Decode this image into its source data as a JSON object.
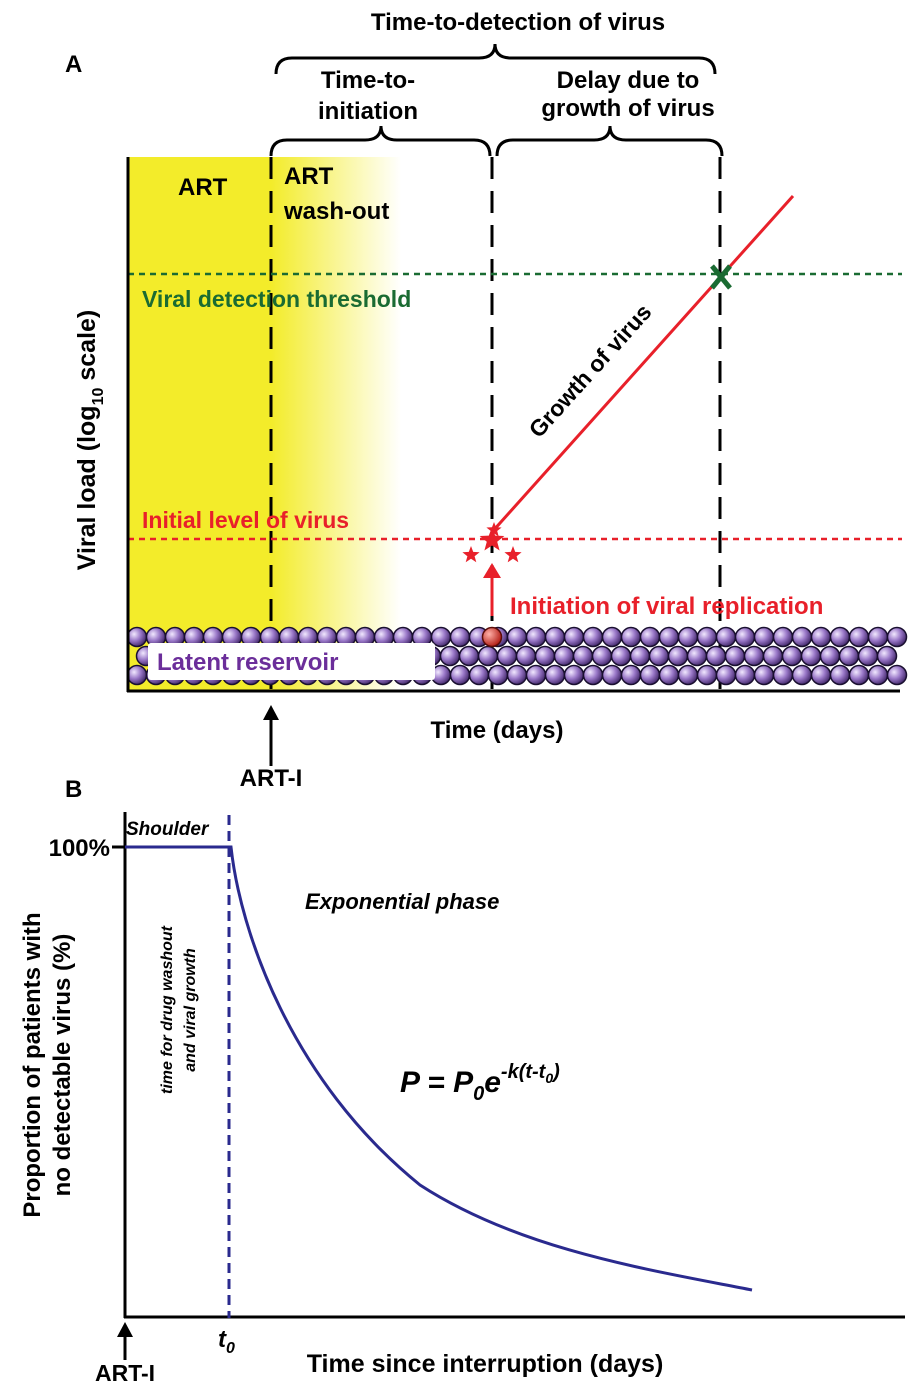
{
  "panel_a": {
    "label": "A",
    "title": "Time-to-detection of virus",
    "time_to_initiation": [
      "Time-to-",
      "initiation"
    ],
    "delay": [
      "Delay due to",
      "growth of virus"
    ],
    "art": "ART",
    "art_washout": [
      "ART",
      "wash-out"
    ],
    "threshold": "Viral detection threshold",
    "growth": "Growth of virus",
    "initial_level": "Initial level of virus",
    "initiation": "Initiation of viral replication",
    "reservoir": "Latent reservoir",
    "y_label": [
      "Viral load (log",
      "10",
      "scale)"
    ],
    "x_label": "Time (days)",
    "art_i": "ART-I"
  },
  "panel_b": {
    "label": "B",
    "shoulder": "Shoulder",
    "top_tick": "100%",
    "exponential": "Exponential phase",
    "washout_note": [
      "time for drug washout",
      "and viral growth"
    ],
    "formula": [
      "P = P",
      "0",
      "e",
      "-k(t-t",
      "0",
      ")"
    ],
    "y_label": [
      "Proportion of patients with",
      "no detectable virus (%)"
    ],
    "t0": [
      "t",
      "0"
    ],
    "art_i": "ART-I",
    "x_label": "Time since interruption (days)"
  }
}
